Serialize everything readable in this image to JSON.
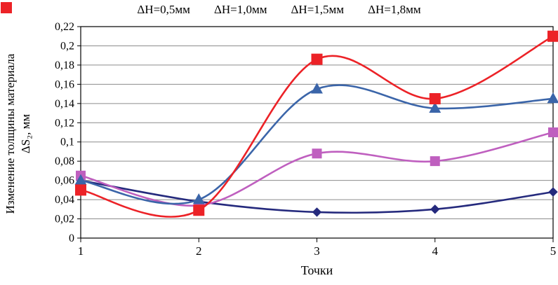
{
  "chart_data": {
    "type": "line",
    "x": [
      1,
      2,
      3,
      4,
      5
    ],
    "series": [
      {
        "name": "ΔH=0,5мм",
        "color": "#252a7d",
        "marker": "diamond",
        "values": [
          0.06,
          0.038,
          0.027,
          0.03,
          0.048
        ]
      },
      {
        "name": "ΔH=1,0мм",
        "color": "#bf5fbf",
        "marker": "square",
        "values": [
          0.065,
          0.034,
          0.088,
          0.08,
          0.11
        ]
      },
      {
        "name": "ΔH=1,5мм",
        "color": "#3b65a9",
        "marker": "triangle",
        "values": [
          0.06,
          0.04,
          0.155,
          0.135,
          0.145
        ]
      },
      {
        "name": "ΔH=1,8мм",
        "color": "#ec2227",
        "marker": "square",
        "values": [
          0.05,
          0.029,
          0.186,
          0.145,
          0.21
        ]
      }
    ],
    "xlabel": "Точки",
    "ylabel_line1": "Изменение толщины материала",
    "ylabel_line2": "ΔS₂, мм",
    "ylim": [
      0,
      0.22
    ],
    "ytick_step": 0.02,
    "ytick_labels": [
      "0",
      "0,02",
      "0,04",
      "0,06",
      "0,08",
      "0,1",
      "0,12",
      "0,14",
      "0,16",
      "0,18",
      "0,2",
      "0,22"
    ],
    "xtick_labels": [
      "1",
      "2",
      "3",
      "4",
      "5"
    ],
    "grid": "horizontal",
    "legend_position": "top"
  }
}
